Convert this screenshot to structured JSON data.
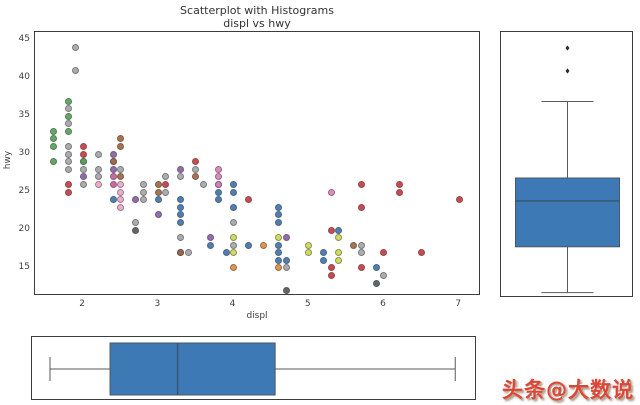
{
  "title": "Scatterplot with Histograms",
  "subtitle": "displ vs hwy",
  "watermark": "头条@大数说",
  "chart_data": {
    "type": "scatter",
    "title": "Scatterplot with Histograms",
    "subtitle": "displ vs hwy",
    "xlabel": "displ",
    "ylabel": "hwy",
    "x_ticks": [
      2,
      3,
      4,
      5,
      6,
      7
    ],
    "y_ticks": [
      15,
      20,
      25,
      30,
      35,
      40,
      45
    ],
    "xlim": [
      1.36,
      7.29
    ],
    "ylim": [
      11.3,
      46.1
    ],
    "grid": false,
    "legend": "none",
    "marginal_boxplots": {
      "fill_color": "#3d79b5",
      "edge_color": "#4d565e",
      "median_color": "#3a536b",
      "whisker_color": "#5a5a5a",
      "outlier_color": "#2b2b2b",
      "x_boxplot": {
        "axis": "displ",
        "min": 1.6,
        "q1": 2.4,
        "median": 3.3,
        "q3": 4.6,
        "max": 7.0,
        "outliers": []
      },
      "y_boxplot": {
        "axis": "hwy",
        "min": 12,
        "q1": 18,
        "median": 24,
        "q3": 27,
        "max": 37,
        "outliers": [
          41,
          44
        ]
      }
    },
    "series": [
      {
        "name": "group-gray",
        "color": "#a4a6a8",
        "points": [
          [
            1.9,
            44
          ],
          [
            1.9,
            41
          ],
          [
            1.8,
            36
          ],
          [
            1.8,
            34
          ],
          [
            1.8,
            31
          ],
          [
            1.8,
            30
          ],
          [
            1.8,
            29
          ],
          [
            1.8,
            28
          ],
          [
            2.0,
            29
          ],
          [
            2.0,
            28
          ],
          [
            2.0,
            26
          ],
          [
            2.2,
            30
          ],
          [
            2.2,
            28
          ],
          [
            2.2,
            27
          ],
          [
            2.4,
            29
          ],
          [
            2.5,
            28
          ],
          [
            2.8,
            26
          ],
          [
            2.8,
            25
          ],
          [
            2.8,
            24
          ],
          [
            3.1,
            27
          ],
          [
            3.1,
            25
          ],
          [
            3.3,
            27
          ],
          [
            3.5,
            28
          ],
          [
            3.6,
            26
          ],
          [
            3.3,
            19
          ],
          [
            3.4,
            17
          ],
          [
            4.0,
            21
          ],
          [
            4.0,
            18
          ],
          [
            4.7,
            15
          ],
          [
            5.7,
            18
          ],
          [
            5.7,
            17
          ],
          [
            6.0,
            14
          ],
          [
            2.7,
            21
          ]
        ]
      },
      {
        "name": "group-green",
        "color": "#53a357",
        "points": [
          [
            1.6,
            33
          ],
          [
            1.6,
            32
          ],
          [
            1.6,
            31
          ],
          [
            1.6,
            29
          ],
          [
            1.8,
            37
          ],
          [
            1.8,
            35
          ],
          [
            1.8,
            33
          ],
          [
            2.0,
            29
          ]
        ]
      },
      {
        "name": "group-red",
        "color": "#c73a42",
        "points": [
          [
            1.8,
            26
          ],
          [
            1.8,
            25
          ],
          [
            2.0,
            31
          ],
          [
            2.0,
            30
          ],
          [
            3.1,
            26
          ],
          [
            3.5,
            29
          ],
          [
            4.2,
            24
          ],
          [
            5.3,
            20
          ],
          [
            5.3,
            15
          ],
          [
            5.3,
            14
          ],
          [
            5.7,
            26
          ],
          [
            5.7,
            23
          ],
          [
            5.7,
            15
          ],
          [
            6.0,
            17
          ],
          [
            6.2,
            26
          ],
          [
            6.2,
            25
          ],
          [
            6.5,
            17
          ],
          [
            7.0,
            24
          ]
        ]
      },
      {
        "name": "group-blue",
        "color": "#3f74ae",
        "points": [
          [
            2.4,
            24
          ],
          [
            3.0,
            24
          ],
          [
            3.3,
            24
          ],
          [
            3.3,
            23
          ],
          [
            3.3,
            22
          ],
          [
            3.3,
            21
          ],
          [
            3.3,
            17
          ],
          [
            3.7,
            18
          ],
          [
            3.8,
            26
          ],
          [
            3.8,
            25
          ],
          [
            3.8,
            24
          ],
          [
            3.9,
            17
          ],
          [
            4.0,
            26
          ],
          [
            4.0,
            25
          ],
          [
            4.0,
            23
          ],
          [
            4.2,
            18
          ],
          [
            4.6,
            23
          ],
          [
            4.6,
            22
          ],
          [
            4.6,
            21
          ],
          [
            4.6,
            18
          ],
          [
            4.6,
            17
          ],
          [
            4.6,
            16
          ],
          [
            4.7,
            16
          ],
          [
            5.2,
            17
          ],
          [
            5.2,
            16
          ],
          [
            5.4,
            20
          ],
          [
            5.9,
            15
          ]
        ]
      },
      {
        "name": "group-yellowgreen",
        "color": "#cdda4d",
        "points": [
          [
            4.0,
            19
          ],
          [
            4.0,
            17
          ],
          [
            4.6,
            19
          ],
          [
            5.0,
            18
          ],
          [
            5.0,
            17
          ],
          [
            5.4,
            19
          ],
          [
            5.4,
            17
          ],
          [
            5.4,
            16
          ]
        ]
      },
      {
        "name": "group-orange",
        "color": "#dd8d3e",
        "points": [
          [
            4.4,
            18
          ],
          [
            4.0,
            15
          ],
          [
            4.6,
            15
          ]
        ]
      },
      {
        "name": "group-brown",
        "color": "#a2663e",
        "points": [
          [
            2.5,
            32
          ],
          [
            2.5,
            31
          ],
          [
            2.4,
            29
          ],
          [
            2.5,
            27
          ],
          [
            3.0,
            26
          ],
          [
            3.0,
            25
          ],
          [
            3.5,
            27
          ],
          [
            3.3,
            17
          ],
          [
            5.6,
            18
          ]
        ]
      },
      {
        "name": "group-purple",
        "color": "#8c5fa8",
        "points": [
          [
            2.4,
            30
          ],
          [
            2.4,
            28
          ],
          [
            2.0,
            27
          ],
          [
            2.7,
            24
          ],
          [
            3.3,
            28
          ],
          [
            3.7,
            19
          ],
          [
            4.7,
            19
          ],
          [
            3.0,
            22
          ]
        ]
      },
      {
        "name": "group-magenta",
        "color": "#c75d9e",
        "points": [
          [
            2.4,
            27
          ],
          [
            2.4,
            26
          ]
        ]
      },
      {
        "name": "group-lightpink",
        "color": "#efa6c9",
        "points": [
          [
            2.2,
            26
          ],
          [
            2.5,
            26
          ],
          [
            2.5,
            25
          ],
          [
            2.5,
            24
          ],
          [
            2.5,
            23
          ]
        ]
      },
      {
        "name": "group-pink",
        "color": "#e07fb8",
        "points": [
          [
            3.8,
            28
          ],
          [
            3.8,
            27
          ],
          [
            3.8,
            26
          ],
          [
            5.3,
            25
          ]
        ]
      },
      {
        "name": "group-darkslate",
        "color": "#53595e",
        "points": [
          [
            2.7,
            20
          ],
          [
            4.7,
            12
          ],
          [
            5.9,
            13
          ]
        ]
      }
    ]
  }
}
